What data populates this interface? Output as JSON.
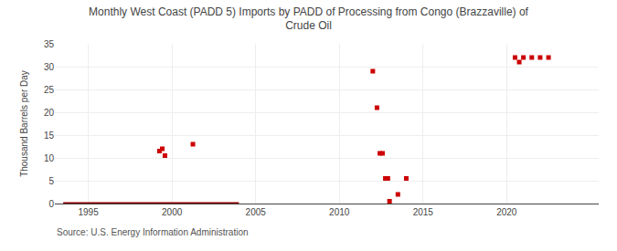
{
  "chart_data": {
    "type": "scatter",
    "title": "Monthly West Coast (PADD 5) Imports by PADD of Processing from Congo (Brazzaville) of\nCrude Oil",
    "ylabel": "Thousand Barrels per Day",
    "annotations": [
      "Source: U.S. Energy Information Administration"
    ],
    "series": [
      {
        "type": "line",
        "color": "#8B0000",
        "line_style": "solid",
        "x": [
          1993.5,
          2004.0
        ],
        "values": [
          0,
          0
        ]
      },
      {
        "type": "scatter",
        "color": "#cc0000",
        "marker": "square",
        "x": [
          1999.25,
          1999.42,
          1999.58,
          2001.25,
          2012.0,
          2012.25,
          2012.42,
          2012.58,
          2012.75,
          2012.9,
          2013.0,
          2013.5,
          2014.0,
          2020.5,
          2020.75,
          2021.0,
          2021.5,
          2022.0,
          2022.5
        ],
        "values": [
          11.5,
          12.0,
          10.5,
          13.0,
          29.0,
          21.0,
          11.0,
          11.0,
          5.5,
          5.5,
          0.5,
          2.0,
          5.5,
          32.0,
          31.0,
          32.0,
          32.0,
          32.0,
          32.0
        ]
      }
    ],
    "xlim": [
      1993,
      2025.5
    ],
    "xticks": [
      1995,
      2000,
      2005,
      2010,
      2015,
      2020
    ],
    "ylim": [
      0,
      35
    ],
    "yticks": [
      0,
      5,
      10,
      15,
      20,
      25,
      30,
      35
    ],
    "grid": true
  }
}
